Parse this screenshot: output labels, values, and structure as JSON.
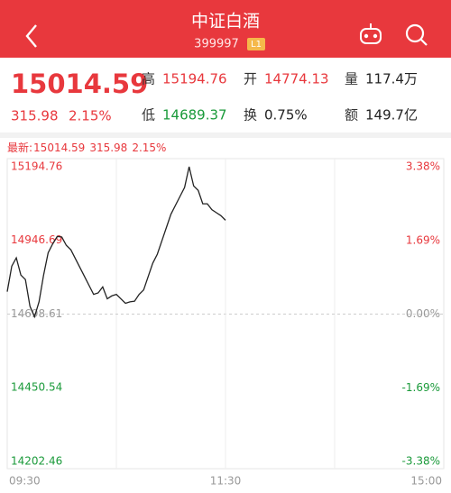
{
  "header": {
    "title": "中证白酒",
    "code": "399997",
    "badge": "L1"
  },
  "quote": {
    "price": "15014.59",
    "change": "315.98",
    "pct": "2.15%",
    "stats": [
      {
        "label": "高",
        "value": "15194.76",
        "color": "#e8383d"
      },
      {
        "label": "开",
        "value": "14774.13",
        "color": "#e8383d"
      },
      {
        "label": "量",
        "value": "117.4万",
        "color": "#222222"
      },
      {
        "label": "低",
        "value": "14689.37",
        "color": "#1a9a3a"
      },
      {
        "label": "换",
        "value": "0.75%",
        "color": "#222222"
      },
      {
        "label": "额",
        "value": "149.7亿",
        "color": "#222222"
      }
    ]
  },
  "chart_data": {
    "type": "line",
    "latest": {
      "label": "最新:",
      "price": "15014.59",
      "change": "315.98",
      "pct": "2.15%"
    },
    "x": [
      0,
      2.5,
      5,
      7.5,
      10,
      12.5,
      15,
      17.5,
      20,
      22.5,
      25,
      27.5,
      30,
      32.5,
      35,
      37.5,
      40,
      42.5,
      45,
      47.5,
      50,
      52.5,
      55,
      57.5,
      60,
      62.5,
      65,
      67.5,
      70,
      72.5,
      75,
      77.5,
      80,
      82.5,
      85,
      87.5,
      90,
      92.5,
      95,
      97.5,
      100,
      102.5,
      105,
      107.5,
      110,
      112.5,
      115,
      117.5,
      120
    ],
    "series": [
      {
        "name": "中证白酒",
        "color": "#222222",
        "values": [
          14774.13,
          14860,
          14888,
          14830,
          14815,
          14725,
          14689.37,
          14740,
          14830,
          14905,
          14935,
          14960,
          14958,
          14930,
          14915,
          14885,
          14855,
          14825,
          14795,
          14765,
          14770,
          14790,
          14750,
          14760,
          14765,
          14750,
          14735,
          14740,
          14742,
          14765,
          14780,
          14825,
          14870,
          14900,
          14945,
          14990,
          15035,
          15065,
          15095,
          15125,
          15194.76,
          15130,
          15115,
          15070,
          15070,
          15050,
          15040,
          15030,
          15014.59
        ]
      }
    ],
    "xlim": [
      0,
      240
    ],
    "xticks": [
      {
        "value": 0,
        "label": "09:30"
      },
      {
        "value": 120,
        "label": "11:30"
      },
      {
        "value": 240,
        "label": "15:00"
      }
    ],
    "ylim": [
      14202.46,
      15194.76
    ],
    "yticks": [
      15194.76,
      14946.69,
      14698.61,
      14450.54,
      14202.46
    ],
    "y2lim": [
      -3.38,
      3.38
    ],
    "y2ticks": [
      {
        "value": 3.38,
        "label": "3.38%"
      },
      {
        "value": 1.69,
        "label": "1.69%"
      },
      {
        "value": 0,
        "label": "0.00%"
      },
      {
        "value": -1.69,
        "label": "-1.69%"
      },
      {
        "value": -3.38,
        "label": "-3.38%"
      }
    ]
  }
}
